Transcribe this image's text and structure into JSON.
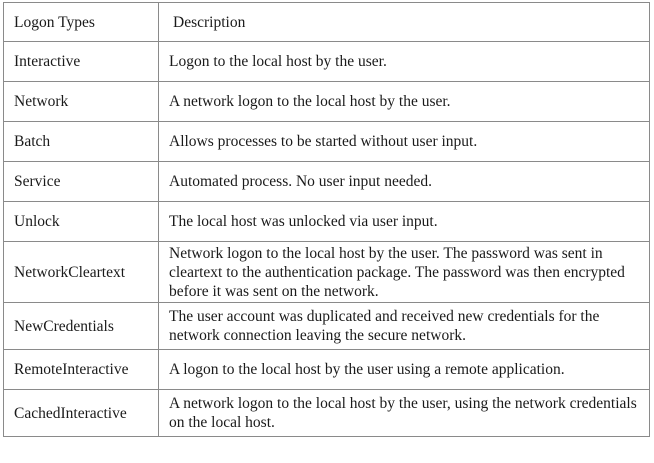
{
  "table": {
    "headers": [
      "Logon Types",
      "Description"
    ],
    "rows": [
      {
        "type": "Interactive",
        "description": "Logon to the local host by the user."
      },
      {
        "type": "Network",
        "description": "A network logon to the local host by the user."
      },
      {
        "type": "Batch",
        "description": "Allows processes to be started without user input."
      },
      {
        "type": "Service",
        "description": "Automated process. No user input needed."
      },
      {
        "type": "Unlock",
        "description": "The local host was unlocked via user input."
      },
      {
        "type": "NetworkCleartext",
        "description": "Network logon to the local host by the user. The password was sent in cleartext to the authentication package. The password was then encrypted before it was sent on the network."
      },
      {
        "type": "NewCredentials",
        "description": "The user account was duplicated and received new credentials for the network connection leaving the secure network."
      },
      {
        "type": "RemoteInteractive",
        "description": "A logon to the local host by the user using a remote application."
      },
      {
        "type": "CachedInteractive",
        "description": "A network logon to the local host by the user, using the network credentials on the local host."
      }
    ]
  }
}
